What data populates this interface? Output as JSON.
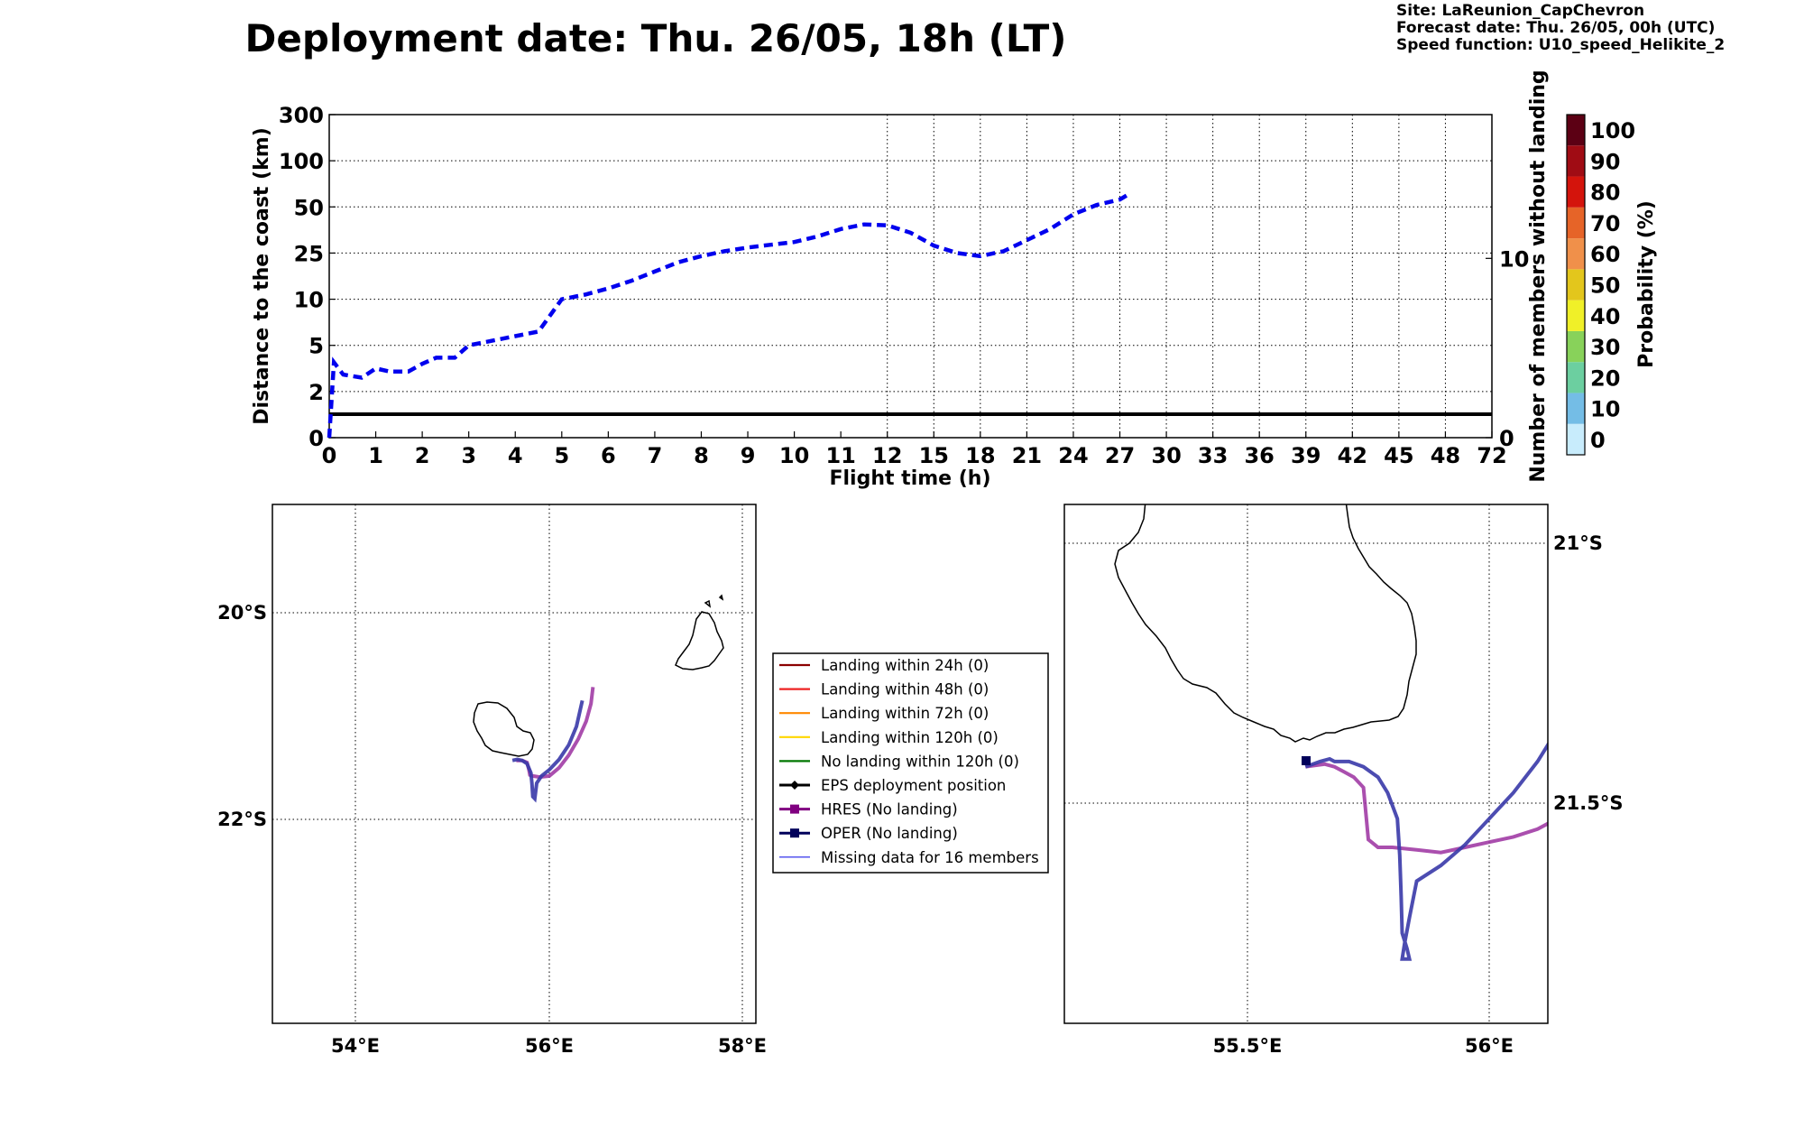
{
  "header": {
    "title": "Deployment date: Thu. 26/05, 18h (LT)",
    "site": "Site: LaReunion_CapChevron",
    "forecast": "Forecast date: Thu. 26/05, 00h (UTC)",
    "speed": "Speed function: U10_speed_Helikite_2"
  },
  "chart_data": [
    {
      "type": "line",
      "xlabel": "Flight time (h)",
      "ylabel": "Distance to the coast (km)",
      "y2label": "Number of members without landing",
      "xlim": [
        0,
        72
      ],
      "x_ticks": [
        "0",
        "1",
        "2",
        "3",
        "4",
        "5",
        "6",
        "7",
        "8",
        "9",
        "10",
        "11",
        "12",
        "15",
        "18",
        "21",
        "24",
        "27",
        "30",
        "33",
        "36",
        "39",
        "42",
        "45",
        "48",
        "72"
      ],
      "y_ticks": [
        "0",
        "2",
        "5",
        "10",
        "25",
        "50",
        "100",
        "300"
      ],
      "y2_ticks": [
        "0",
        "10"
      ],
      "grid": true,
      "series": [
        {
          "color": "#0000ee",
          "style": "dashed",
          "x": [
            0,
            0.1,
            0.3,
            0.7,
            1,
            1.3,
            1.7,
            2,
            2.3,
            2.7,
            3,
            3.5,
            4,
            4.5,
            5,
            5.5,
            6,
            6.5,
            7,
            7.5,
            8,
            8.5,
            9,
            9.5,
            10,
            10.5,
            11,
            11.5,
            12,
            13.5,
            15,
            16.5,
            18,
            19.5,
            21,
            22.5,
            24,
            25.5,
            27,
            27.7
          ],
          "y": [
            0,
            3.9,
            3.1,
            2.9,
            3.5,
            3.3,
            3.3,
            3.8,
            4.2,
            4.2,
            5,
            5.5,
            6,
            6.5,
            10,
            11.5,
            13.5,
            16,
            19,
            22,
            24,
            26,
            28,
            29.5,
            31,
            34,
            38,
            40.5,
            40,
            36,
            29,
            25,
            24,
            26,
            32,
            38,
            46,
            52,
            58,
            65
          ]
        }
      ],
      "members_without_landing": 1,
      "members_line_color": "#000000"
    },
    {
      "type": "line",
      "note_x": "lon",
      "note_y": "lat",
      "x_ticks": [
        "54°E",
        "56°E",
        "58°E"
      ],
      "y_ticks": [
        "20°S",
        "22°S"
      ],
      "grid": true,
      "series": [
        {
          "name": "HRES (No landing)",
          "color": "#9b30a0",
          "x": [
            55.66,
            55.72,
            55.77,
            55.79,
            55.8,
            55.83,
            55.9,
            56.0,
            56.1,
            56.2,
            56.3,
            56.38,
            56.43,
            56.45
          ],
          "y": [
            -21.43,
            -21.43,
            -21.45,
            -21.52,
            -21.57,
            -21.58,
            -21.59,
            -21.58,
            -21.5,
            -21.38,
            -21.22,
            -21.05,
            -20.88,
            -20.72
          ]
        },
        {
          "name": "OPER (No landing)",
          "color": "#3838a8",
          "x": [
            55.62,
            55.67,
            55.72,
            55.77,
            55.81,
            55.82,
            55.83,
            55.85,
            55.87,
            55.92,
            56.0,
            56.1,
            56.2,
            56.28,
            56.34
          ],
          "y": [
            -21.43,
            -21.42,
            -21.43,
            -21.46,
            -21.55,
            -21.65,
            -21.78,
            -21.8,
            -21.65,
            -21.58,
            -21.52,
            -21.42,
            -21.28,
            -21.1,
            -20.85
          ]
        }
      ]
    },
    {
      "type": "line",
      "note_x": "lon",
      "note_y": "lat",
      "x_ticks": [
        "55.5°E",
        "56°E"
      ],
      "y_ticks": [
        "21°S",
        "21.5°S"
      ],
      "grid": true,
      "series": [
        {
          "name": "HRES (No landing)",
          "color": "#9b30a0",
          "x": [
            55.62,
            55.66,
            55.68,
            55.7,
            55.72,
            55.74,
            55.745,
            55.75,
            55.77,
            55.8,
            55.85,
            55.9,
            55.95,
            56.0,
            56.05,
            56.1,
            56.14
          ],
          "y": [
            -21.43,
            -21.425,
            -21.43,
            -21.44,
            -21.45,
            -21.47,
            -21.52,
            -21.57,
            -21.585,
            -21.585,
            -21.59,
            -21.595,
            -21.585,
            -21.575,
            -21.565,
            -21.55,
            -21.53
          ]
        },
        {
          "name": "OPER (No landing)",
          "color": "#3838a8",
          "x": [
            55.62,
            55.65,
            55.67,
            55.68,
            55.7,
            55.71,
            55.74,
            55.77,
            55.79,
            55.81,
            55.815,
            55.818,
            55.82,
            55.83,
            55.835,
            55.82,
            55.825,
            55.835,
            55.85,
            55.9,
            55.95,
            56.0,
            56.05,
            56.1,
            56.14
          ],
          "y": [
            -21.43,
            -21.42,
            -21.415,
            -21.42,
            -21.42,
            -21.42,
            -21.43,
            -21.45,
            -21.48,
            -21.53,
            -21.6,
            -21.68,
            -21.75,
            -21.78,
            -21.8,
            -21.8,
            -21.77,
            -21.72,
            -21.65,
            -21.62,
            -21.58,
            -21.53,
            -21.48,
            -21.42,
            -21.36
          ]
        }
      ]
    }
  ],
  "colorbar": {
    "label": "Probability (%)",
    "ticks": [
      "0",
      "10",
      "20",
      "30",
      "40",
      "50",
      "60",
      "70",
      "80",
      "90",
      "100"
    ],
    "colors": [
      "#c8ecfc",
      "#74bde6",
      "#6ccfa0",
      "#88d25a",
      "#f0f028",
      "#e3c61c",
      "#f0904a",
      "#e66428",
      "#d4140c",
      "#a00c14",
      "#5c0014"
    ]
  },
  "legend": {
    "items": [
      {
        "label": "Landing within 24h (0)",
        "color": "#8b0000",
        "style": "line"
      },
      {
        "label": "Landing within 48h (0)",
        "color": "#ee2222",
        "style": "line"
      },
      {
        "label": "Landing within 72h (0)",
        "color": "#ff8800",
        "style": "line"
      },
      {
        "label": "Landing within 120h (0)",
        "color": "#ffd700",
        "style": "line"
      },
      {
        "label": "No landing within 120h (0)",
        "color": "#007700",
        "style": "line"
      },
      {
        "label": "EPS deployment position",
        "color": "#000000",
        "style": "diamond"
      },
      {
        "label": "HRES (No landing)",
        "color": "#800080",
        "style": "square"
      },
      {
        "label": "OPER (No landing)",
        "color": "#00005a",
        "style": "square"
      },
      {
        "label": "Missing data for 16 members",
        "color": "#5555ee",
        "style": "thin"
      }
    ]
  }
}
